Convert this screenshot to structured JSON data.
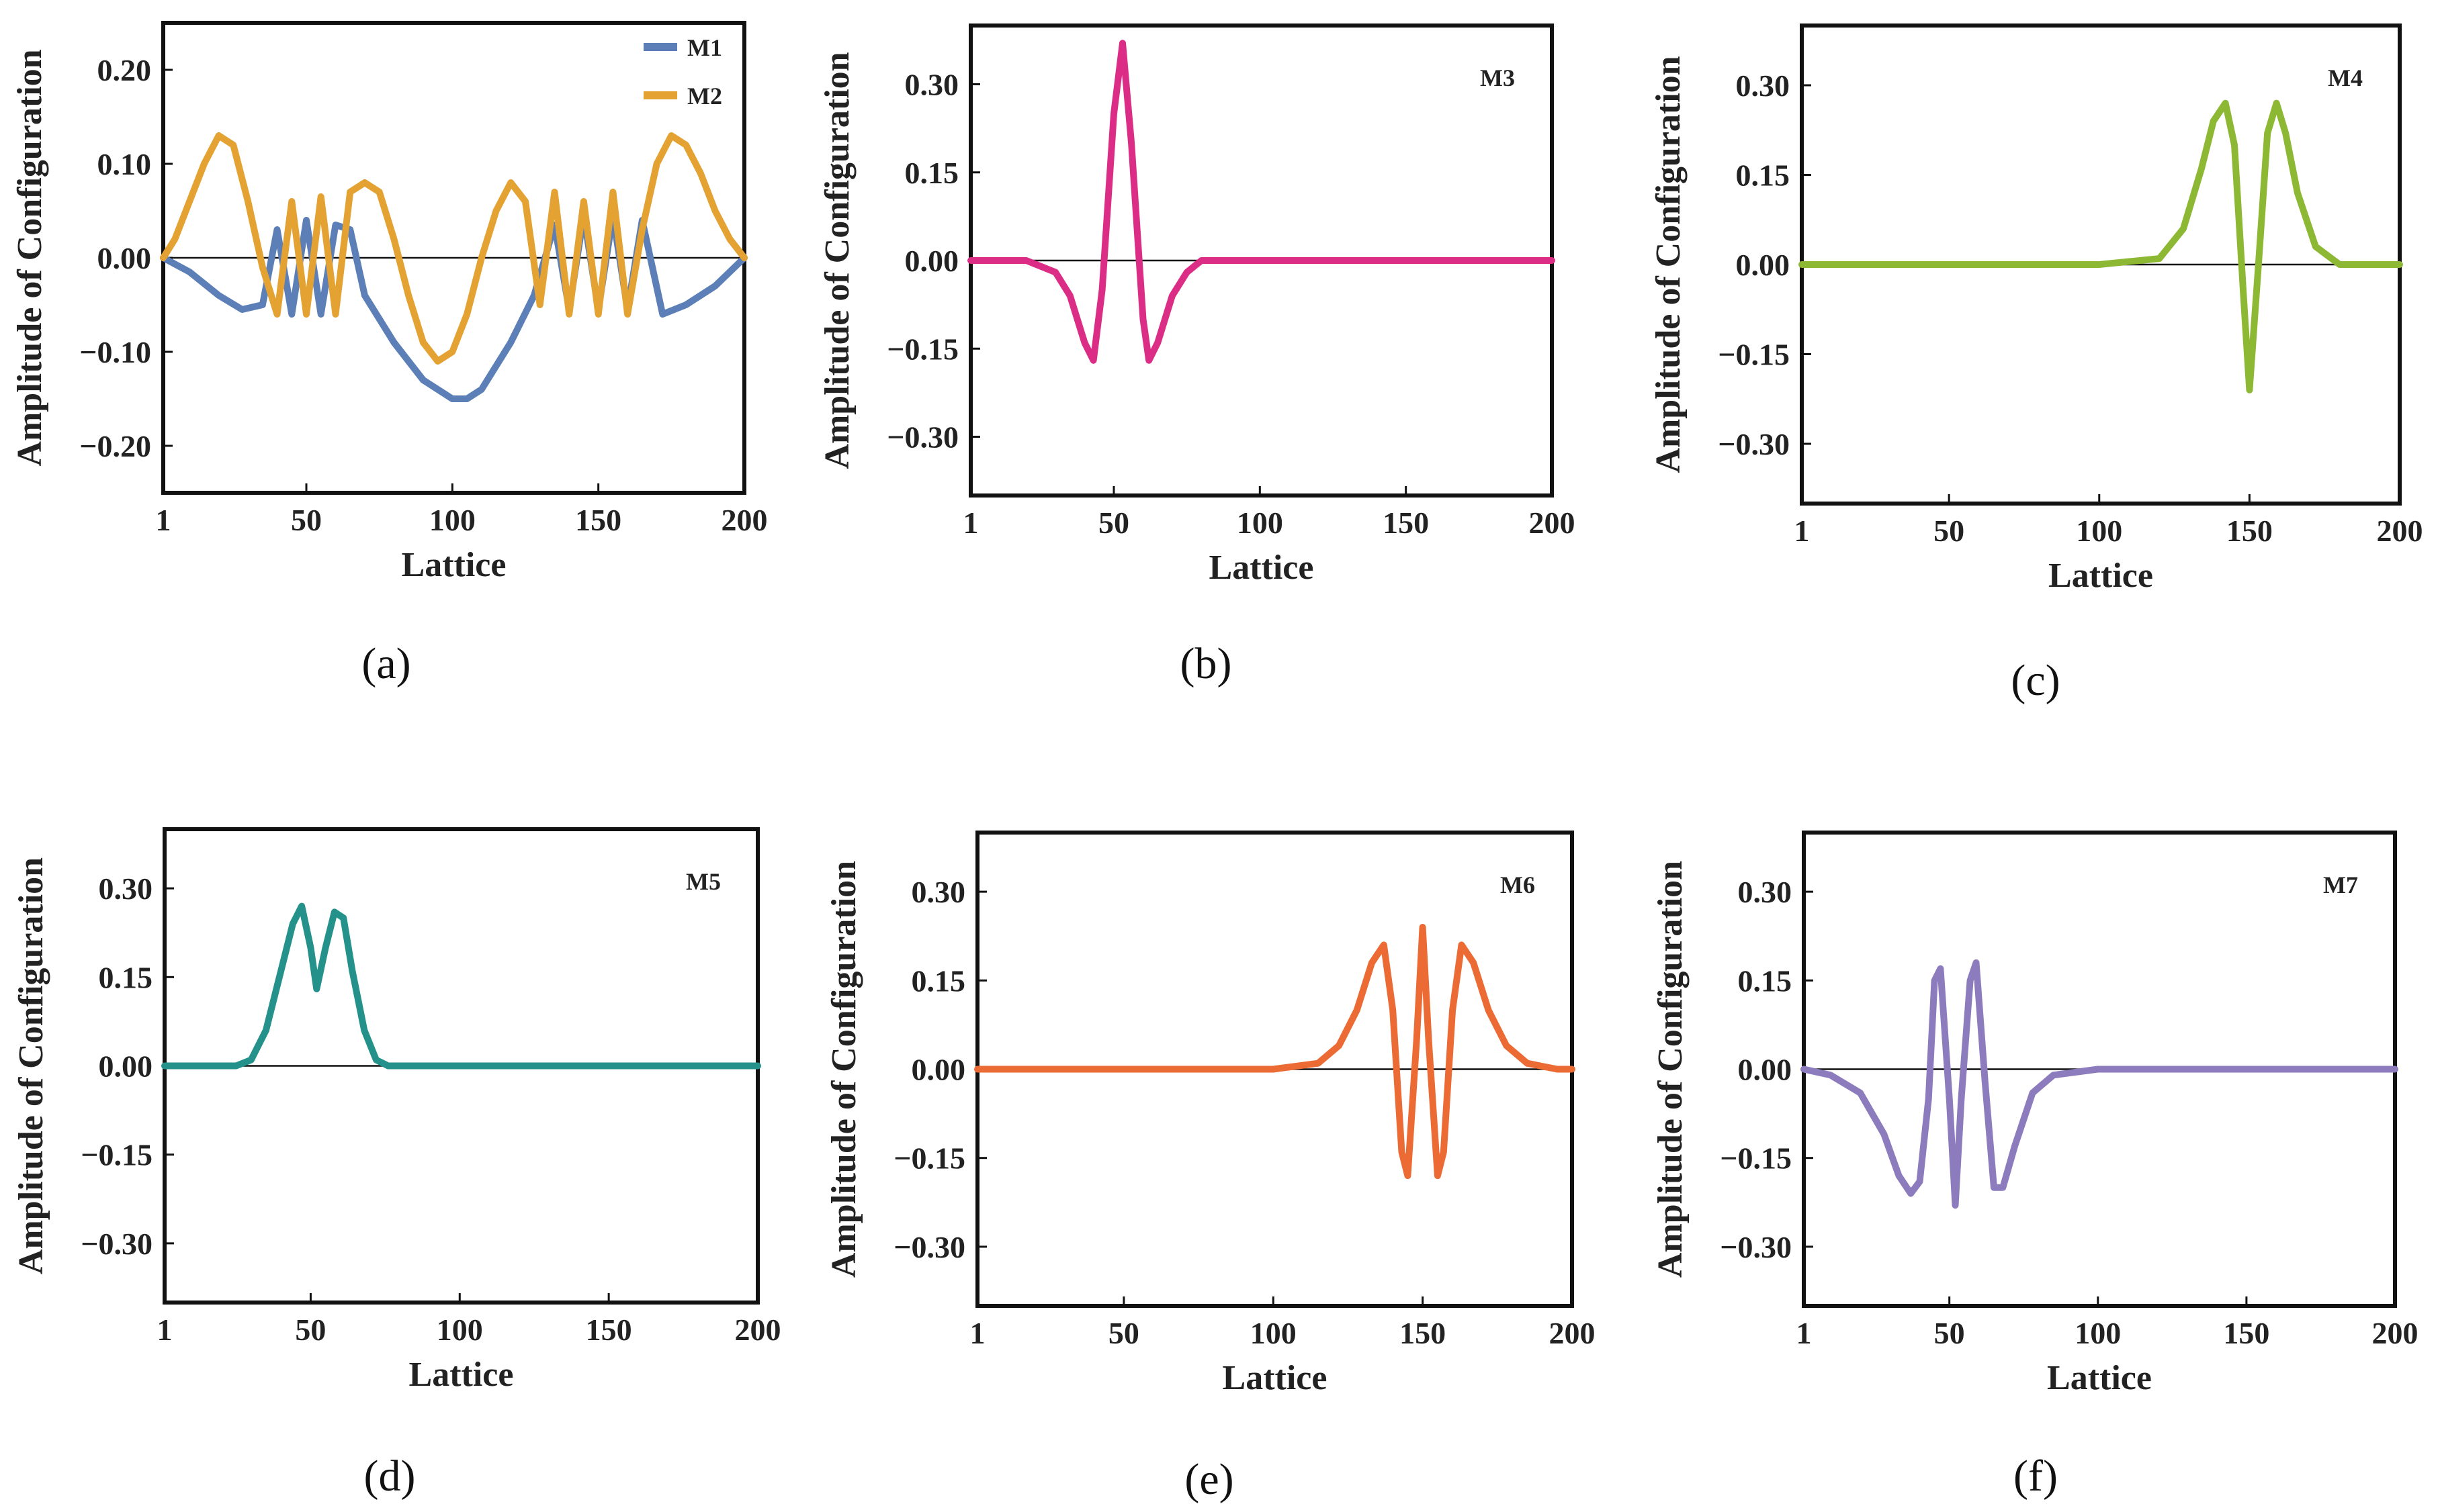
{
  "chart_data": [
    {
      "panel": "(a)",
      "type": "line",
      "xlabel": "Lattice",
      "ylabel": "Amplitude of Configuration",
      "xlim": [
        1,
        200
      ],
      "ylim": [
        -0.25,
        0.25
      ],
      "xticks": [
        1,
        50,
        100,
        150,
        200
      ],
      "yticks": [
        -0.2,
        -0.1,
        0.0,
        0.1,
        0.2
      ],
      "ytick_labels": [
        "−0.20",
        "−0.10",
        "0.00",
        "0.10",
        "0.20"
      ],
      "zero_line": true,
      "legend": "top-right",
      "series": [
        {
          "name": "M1",
          "color": "#5b7fb6",
          "x": [
            1,
            10,
            20,
            28,
            35,
            40,
            45,
            50,
            55,
            60,
            65,
            70,
            80,
            90,
            100,
            105,
            110,
            120,
            128,
            135,
            140,
            145,
            150,
            155,
            160,
            165,
            172,
            180,
            190,
            200
          ],
          "y": [
            0.0,
            -0.015,
            -0.04,
            -0.055,
            -0.05,
            0.03,
            -0.06,
            0.04,
            -0.06,
            0.035,
            0.03,
            -0.04,
            -0.09,
            -0.13,
            -0.15,
            -0.15,
            -0.14,
            -0.09,
            -0.04,
            0.035,
            -0.055,
            0.045,
            -0.055,
            0.045,
            -0.055,
            0.04,
            -0.06,
            -0.05,
            -0.03,
            0.0
          ]
        },
        {
          "name": "M2",
          "color": "#e3a232",
          "x": [
            1,
            5,
            10,
            15,
            20,
            25,
            30,
            35,
            40,
            45,
            50,
            55,
            60,
            65,
            70,
            75,
            80,
            85,
            90,
            95,
            100,
            105,
            110,
            115,
            120,
            125,
            130,
            135,
            140,
            145,
            150,
            155,
            160,
            165,
            170,
            175,
            180,
            185,
            190,
            195,
            200
          ],
          "y": [
            0.0,
            0.02,
            0.06,
            0.1,
            0.13,
            0.12,
            0.06,
            -0.01,
            -0.06,
            0.06,
            -0.06,
            0.065,
            -0.06,
            0.07,
            0.08,
            0.07,
            0.02,
            -0.04,
            -0.09,
            -0.11,
            -0.1,
            -0.06,
            0.0,
            0.05,
            0.08,
            0.06,
            -0.05,
            0.07,
            -0.06,
            0.06,
            -0.06,
            0.07,
            -0.06,
            0.03,
            0.1,
            0.13,
            0.12,
            0.09,
            0.05,
            0.02,
            0.0
          ]
        }
      ]
    },
    {
      "panel": "(b)",
      "type": "line",
      "xlabel": "Lattice",
      "ylabel": "Amplitude of Configuration",
      "xlim": [
        1,
        200
      ],
      "ylim": [
        -0.4,
        0.4
      ],
      "xticks": [
        1,
        50,
        100,
        150,
        200
      ],
      "yticks": [
        -0.3,
        -0.15,
        0.0,
        0.15,
        0.3
      ],
      "ytick_labels": [
        "−0.30",
        "−0.15",
        "0.00",
        "0.15",
        "0.30"
      ],
      "zero_line": true,
      "series_label": "M3",
      "series": [
        {
          "name": "M3",
          "color": "#dc2d86",
          "x": [
            1,
            20,
            30,
            35,
            40,
            43,
            46,
            50,
            53,
            56,
            60,
            62,
            65,
            70,
            75,
            80,
            100,
            150,
            200
          ],
          "y": [
            0.0,
            0.0,
            -0.02,
            -0.06,
            -0.14,
            -0.17,
            -0.05,
            0.25,
            0.37,
            0.2,
            -0.1,
            -0.17,
            -0.14,
            -0.06,
            -0.02,
            0.0,
            0.0,
            0.0,
            0.0
          ]
        }
      ]
    },
    {
      "panel": "(c)",
      "type": "line",
      "xlabel": "Lattice",
      "ylabel": "Amplitude of Configuration",
      "xlim": [
        1,
        200
      ],
      "ylim": [
        -0.4,
        0.4
      ],
      "xticks": [
        1,
        50,
        100,
        150,
        200
      ],
      "yticks": [
        -0.3,
        -0.15,
        0.0,
        0.15,
        0.3
      ],
      "ytick_labels": [
        "−0.30",
        "−0.15",
        "0.00",
        "0.15",
        "0.30"
      ],
      "zero_line": true,
      "series_label": "M4",
      "series": [
        {
          "name": "M4",
          "color": "#8db834",
          "x": [
            1,
            100,
            120,
            128,
            134,
            138,
            142,
            145,
            148,
            150,
            153,
            156,
            159,
            162,
            166,
            172,
            180,
            200
          ],
          "y": [
            0.0,
            0.0,
            0.01,
            0.06,
            0.16,
            0.24,
            0.27,
            0.2,
            -0.05,
            -0.21,
            0.0,
            0.22,
            0.27,
            0.22,
            0.12,
            0.03,
            0.0,
            0.0
          ]
        }
      ]
    },
    {
      "panel": "(d)",
      "type": "line",
      "xlabel": "Lattice",
      "ylabel": "Amplitude of Configuration",
      "xlim": [
        1,
        200
      ],
      "ylim": [
        -0.4,
        0.4
      ],
      "xticks": [
        1,
        50,
        100,
        150,
        200
      ],
      "yticks": [
        -0.3,
        -0.15,
        0.0,
        0.15,
        0.3
      ],
      "ytick_labels": [
        "−0.30",
        "−0.15",
        "0.00",
        "0.15",
        "0.30"
      ],
      "zero_line": true,
      "series_label": "M5",
      "series": [
        {
          "name": "M5",
          "color": "#24928a",
          "x": [
            1,
            25,
            30,
            35,
            40,
            44,
            47,
            50,
            52,
            55,
            58,
            61,
            64,
            68,
            72,
            76,
            80,
            100,
            150,
            200
          ],
          "y": [
            0.0,
            0.0,
            0.01,
            0.06,
            0.16,
            0.24,
            0.27,
            0.2,
            0.13,
            0.2,
            0.26,
            0.25,
            0.16,
            0.06,
            0.01,
            0.0,
            0.0,
            0.0,
            0.0,
            0.0
          ]
        }
      ]
    },
    {
      "panel": "(e)",
      "type": "line",
      "xlabel": "Lattice",
      "ylabel": "Amplitude of Configuration",
      "xlim": [
        1,
        200
      ],
      "ylim": [
        -0.4,
        0.4
      ],
      "xticks": [
        1,
        50,
        100,
        150,
        200
      ],
      "yticks": [
        -0.3,
        -0.15,
        0.0,
        0.15,
        0.3
      ],
      "ytick_labels": [
        "−0.30",
        "−0.15",
        "0.00",
        "0.15",
        "0.30"
      ],
      "zero_line": true,
      "series_label": "M6",
      "series": [
        {
          "name": "M6",
          "color": "#ec6a34",
          "x": [
            1,
            100,
            115,
            122,
            128,
            133,
            137,
            140,
            143,
            145,
            148,
            150,
            152,
            155,
            157,
            160,
            163,
            167,
            172,
            178,
            185,
            195,
            200
          ],
          "y": [
            0.0,
            0.0,
            0.01,
            0.04,
            0.1,
            0.18,
            0.21,
            0.1,
            -0.14,
            -0.18,
            0.05,
            0.24,
            0.05,
            -0.18,
            -0.14,
            0.1,
            0.21,
            0.18,
            0.1,
            0.04,
            0.01,
            0.0,
            0.0
          ]
        }
      ]
    },
    {
      "panel": "(f)",
      "type": "line",
      "xlabel": "Lattice",
      "ylabel": "Amplitude of Configuration",
      "xlim": [
        1,
        200
      ],
      "ylim": [
        -0.4,
        0.4
      ],
      "xticks": [
        1,
        50,
        100,
        150,
        200
      ],
      "yticks": [
        -0.3,
        -0.15,
        0.0,
        0.15,
        0.3
      ],
      "ytick_labels": [
        "−0.30",
        "−0.15",
        "0.00",
        "0.15",
        "0.30"
      ],
      "zero_line": true,
      "series_label": "M7",
      "series": [
        {
          "name": "M7",
          "color": "#8d7cbd",
          "x": [
            1,
            10,
            20,
            28,
            33,
            37,
            40,
            43,
            45,
            47,
            50,
            52,
            54,
            57,
            59,
            62,
            65,
            68,
            72,
            78,
            85,
            100,
            150,
            200
          ],
          "y": [
            0.0,
            -0.01,
            -0.04,
            -0.11,
            -0.18,
            -0.21,
            -0.19,
            -0.05,
            0.15,
            0.17,
            -0.05,
            -0.23,
            -0.05,
            0.15,
            0.18,
            -0.02,
            -0.2,
            -0.2,
            -0.13,
            -0.04,
            -0.01,
            0.0,
            0.0,
            0.0
          ]
        }
      ]
    }
  ]
}
